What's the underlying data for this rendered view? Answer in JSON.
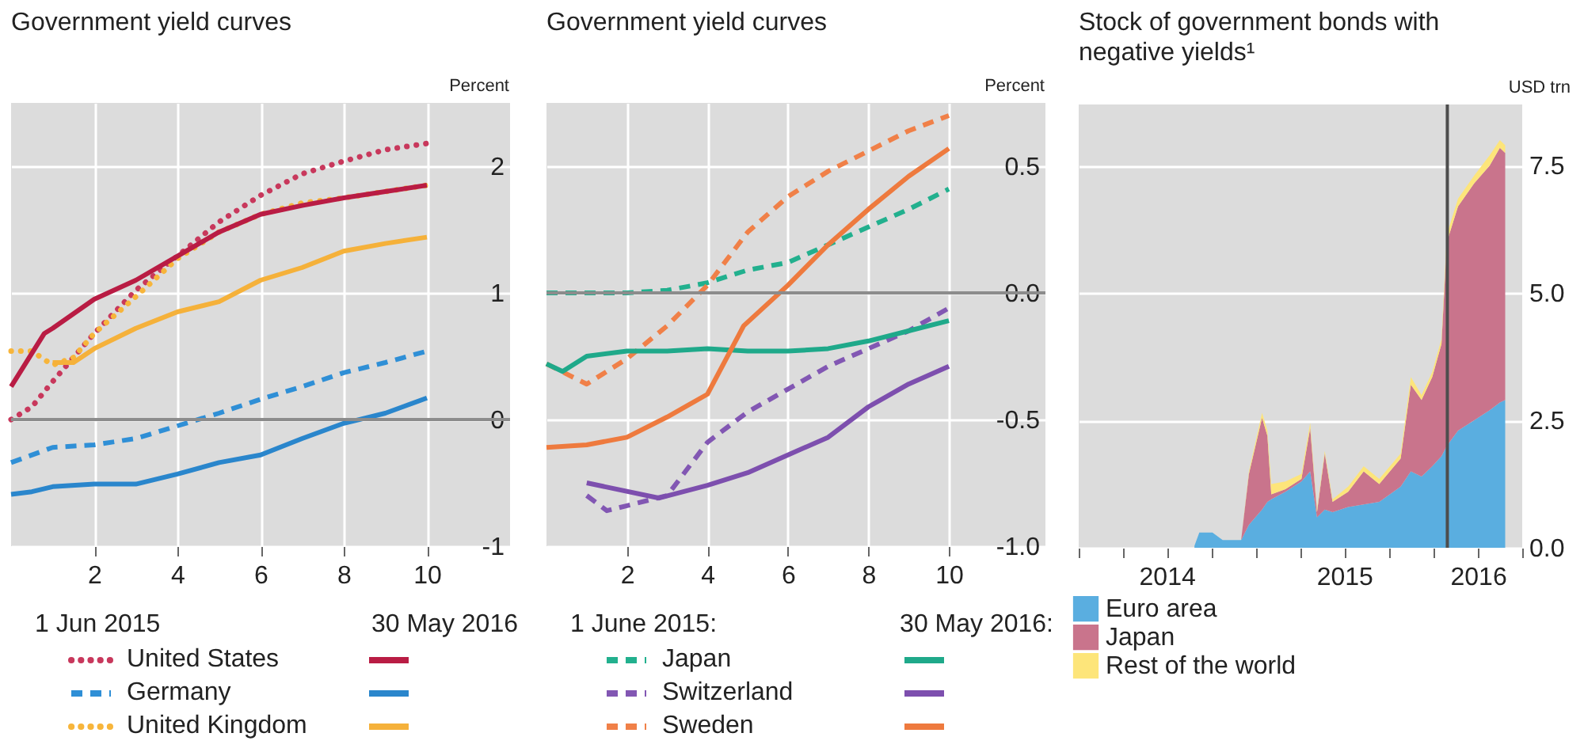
{
  "chart_data": [
    {
      "type": "line",
      "title": "Government yield curves",
      "ylabel": "Percent",
      "xlim": [
        0,
        12
      ],
      "xticks": [
        2,
        4,
        6,
        8,
        10
      ],
      "ylim": [
        -1,
        2.5
      ],
      "yticks": [
        -1,
        0,
        1,
        2
      ],
      "grid": true,
      "legend": "bottom",
      "annotations": [
        "1 Jun 2015",
        "30 May 2016"
      ],
      "ref_lines": [
        {
          "axis": "y",
          "value": 0,
          "color": "#8c8c8c"
        }
      ],
      "series": [
        {
          "name": "United States",
          "color": "#c8385c",
          "line_style": "dotted",
          "x": [
            0,
            0.5,
            1,
            2,
            3,
            4,
            5,
            6,
            7,
            8,
            9,
            10
          ],
          "values": [
            0.0,
            0.1,
            0.3,
            0.68,
            1.02,
            1.29,
            1.56,
            1.77,
            1.94,
            2.04,
            2.13,
            2.18
          ]
        },
        {
          "name": "Germany",
          "color": "#2f8fd6",
          "line_style": "dashed",
          "x": [
            0,
            1,
            2,
            3,
            4,
            5,
            6,
            7,
            8,
            9,
            10
          ],
          "values": [
            -0.34,
            -0.22,
            -0.2,
            -0.15,
            -0.05,
            0.05,
            0.16,
            0.26,
            0.37,
            0.45,
            0.54
          ]
        },
        {
          "name": "United Kingdom",
          "color": "#f7b53b",
          "line_style": "dotted",
          "x": [
            0,
            0.5,
            1,
            1.5,
            2,
            3,
            4,
            5,
            6,
            7,
            8,
            10
          ],
          "values": [
            0.54,
            0.54,
            0.43,
            0.49,
            0.68,
            0.97,
            1.27,
            1.48,
            1.62,
            1.71,
            1.75,
            1.85
          ]
        },
        {
          "color": "#b91c44",
          "line_style": "solid",
          "x": [
            0,
            0.8,
            1,
            2,
            3,
            4,
            5,
            6,
            7,
            8,
            9,
            10
          ],
          "values": [
            0.26,
            0.68,
            0.72,
            0.95,
            1.1,
            1.29,
            1.48,
            1.62,
            1.69,
            1.75,
            1.8,
            1.85
          ]
        },
        {
          "color": "#2a86cc",
          "line_style": "solid",
          "x": [
            0,
            0.5,
            1,
            2,
            3,
            4,
            5,
            6,
            7,
            8,
            9,
            10
          ],
          "values": [
            -0.59,
            -0.57,
            -0.53,
            -0.51,
            -0.51,
            -0.43,
            -0.34,
            -0.28,
            -0.15,
            -0.03,
            0.05,
            0.17
          ]
        },
        {
          "color": "#f5b13a",
          "line_style": "solid",
          "x": [
            1,
            1.5,
            2,
            3,
            4,
            5,
            6,
            7,
            8,
            9,
            10
          ],
          "values": [
            0.45,
            0.45,
            0.56,
            0.72,
            0.85,
            0.93,
            1.1,
            1.2,
            1.33,
            1.39,
            1.44
          ]
        }
      ]
    },
    {
      "type": "line",
      "title": "Government yield curves",
      "ylabel": "Percent",
      "xlim": [
        0,
        12.4
      ],
      "xticks": [
        2,
        4,
        6,
        8,
        10
      ],
      "ylim": [
        -1,
        0.75
      ],
      "yticks": [
        {
          "value": -1,
          "label": "-1.0"
        },
        {
          "value": -0.5,
          "label": "-0.5"
        },
        {
          "value": 0,
          "label": "0.0"
        },
        {
          "value": 0.5,
          "label": "0.5"
        }
      ],
      "grid": true,
      "legend": "bottom",
      "annotations": [
        "1 June 2015:",
        "30 May 2016:"
      ],
      "ref_lines": [
        {
          "axis": "y",
          "value": 0,
          "color": "#8c8c8c"
        }
      ],
      "series": [
        {
          "name": "Japan",
          "color": "#22b08e",
          "line_style": "dashed",
          "x": [
            0,
            1,
            2,
            3,
            4,
            5,
            6,
            7,
            8,
            9,
            10
          ],
          "values": [
            0.0,
            0.0,
            0.0,
            0.01,
            0.04,
            0.09,
            0.12,
            0.19,
            0.26,
            0.33,
            0.41
          ]
        },
        {
          "name": "Switzerland",
          "color": "#8257b3",
          "line_style": "dashed",
          "x": [
            1,
            1.5,
            2,
            3,
            4,
            5,
            6,
            7,
            8,
            9,
            10
          ],
          "values": [
            -0.8,
            -0.86,
            -0.84,
            -0.8,
            -0.59,
            -0.47,
            -0.38,
            -0.29,
            -0.22,
            -0.15,
            -0.06
          ]
        },
        {
          "name": "Sweden",
          "color": "#f08048",
          "line_style": "dashed",
          "x": [
            0,
            1,
            2,
            3,
            4,
            5,
            6,
            7,
            8,
            9,
            10
          ],
          "values": [
            -0.28,
            -0.36,
            -0.26,
            -0.13,
            0.03,
            0.24,
            0.38,
            0.48,
            0.56,
            0.64,
            0.7
          ]
        },
        {
          "color": "#1fa98a",
          "line_style": "solid",
          "x": [
            0,
            0.4,
            1,
            2,
            3,
            4,
            5,
            6,
            7,
            8,
            9,
            10
          ],
          "values": [
            -0.28,
            -0.31,
            -0.25,
            -0.23,
            -0.23,
            -0.22,
            -0.23,
            -0.23,
            -0.22,
            -0.19,
            -0.15,
            -0.11
          ]
        },
        {
          "color": "#7d4fae",
          "line_style": "solid",
          "x": [
            1,
            2.8,
            4,
            5,
            6,
            7,
            8,
            9,
            10
          ],
          "values": [
            -0.75,
            -0.81,
            -0.76,
            -0.71,
            -0.64,
            -0.57,
            -0.45,
            -0.36,
            -0.29
          ]
        },
        {
          "color": "#ee7a3e",
          "line_style": "solid",
          "x": [
            0,
            1,
            2,
            3,
            4,
            4.9,
            6,
            7,
            8,
            9,
            10
          ],
          "values": [
            -0.61,
            -0.6,
            -0.57,
            -0.49,
            -0.4,
            -0.13,
            0.03,
            0.19,
            0.33,
            0.46,
            0.57
          ]
        }
      ]
    },
    {
      "type": "area",
      "stacked": true,
      "title": "Stock of government bonds with negative yields¹",
      "ylabel": "USD trn",
      "xlim": [
        "2014-01-01",
        "2016-07-01"
      ],
      "xticks": [
        {
          "value": "2014-01-01",
          "label": null
        },
        {
          "value": "2014-04-01",
          "label": null
        },
        {
          "value": "2014-07-01",
          "label": "2014"
        },
        {
          "value": "2014-10-01",
          "label": null
        },
        {
          "value": "2015-01-01",
          "label": null
        },
        {
          "value": "2015-04-01",
          "label": null
        },
        {
          "value": "2015-07-01",
          "label": "2015"
        },
        {
          "value": "2015-10-01",
          "label": null
        },
        {
          "value": "2016-01-01",
          "label": null
        },
        {
          "value": "2016-04-01",
          "label": "2016"
        },
        {
          "value": "2016-07-01",
          "label": null
        }
      ],
      "ylim": [
        0,
        8.7
      ],
      "yticks": [
        {
          "value": 0,
          "label": "0.0"
        },
        {
          "value": 2.5,
          "label": "2.5"
        },
        {
          "value": 5,
          "label": "5.0"
        },
        {
          "value": 7.5,
          "label": "7.5"
        }
      ],
      "grid": "y",
      "legend": "bottom",
      "ref_lines": [
        {
          "axis": "x",
          "value": "2016-01-29",
          "color": "#4d4d4d"
        }
      ],
      "x": [
        "2014-08-27",
        "2014-09-06",
        "2014-10-03",
        "2014-10-24",
        "2014-12-01",
        "2014-12-17",
        "2015-01-13",
        "2015-01-24",
        "2015-02-01",
        "2015-03-02",
        "2015-04-04",
        "2015-04-22",
        "2015-05-06",
        "2015-05-22",
        "2015-06-07",
        "2015-07-09",
        "2015-08-10",
        "2015-09-11",
        "2015-10-25",
        "2015-11-15",
        "2015-12-07",
        "2015-12-29",
        "2016-01-17",
        "2016-01-28",
        "2016-02-20",
        "2016-03-24",
        "2016-04-25",
        "2016-05-16",
        "2016-05-27"
      ],
      "series": [
        {
          "name": "Euro area",
          "color": "#5aaee0",
          "values": [
            0.04,
            0.3,
            0.3,
            0.15,
            0.15,
            0.45,
            0.75,
            0.9,
            0.95,
            1.1,
            1.3,
            1.5,
            0.6,
            0.75,
            0.7,
            0.8,
            0.85,
            0.9,
            1.2,
            1.5,
            1.4,
            1.6,
            1.8,
            2.0,
            2.3,
            2.5,
            2.7,
            2.85,
            2.9
          ]
        },
        {
          "name": "Japan",
          "color": "#c9748c",
          "values": [
            0,
            0,
            0,
            0,
            0,
            1.0,
            1.8,
            1.3,
            0.1,
            0.05,
            0.05,
            0.85,
            0.1,
            1.1,
            0.2,
            0.3,
            0.65,
            0.35,
            0.55,
            1.7,
            1.5,
            1.75,
            2.2,
            4.0,
            4.4,
            4.65,
            4.8,
            5.0,
            4.85
          ]
        },
        {
          "name": "Rest of the world",
          "color": "#fde57a",
          "values": [
            0,
            0,
            0,
            0,
            0,
            0.05,
            0.1,
            0.1,
            0.2,
            0.15,
            0.1,
            0.1,
            0.05,
            0.05,
            0.05,
            0.1,
            0.1,
            0.1,
            0.1,
            0.15,
            0.1,
            0.1,
            0.1,
            0.15,
            0.15,
            0.15,
            0.2,
            0.15,
            0.15
          ]
        }
      ]
    }
  ]
}
